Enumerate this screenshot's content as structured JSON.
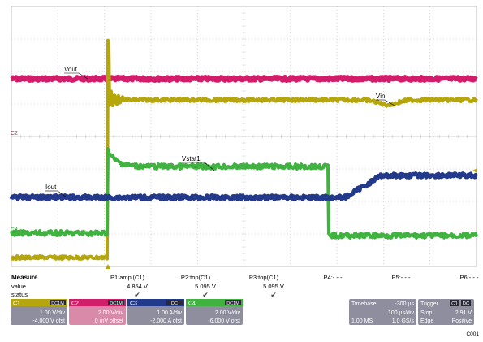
{
  "colors": {
    "ch1": "#b5a60e",
    "ch2": "#d21d6a",
    "ch3": "#233a8c",
    "ch4": "#3fb23f",
    "grid": "#b0b0b0",
    "panel": "#8e8e9e",
    "panel_dark": "#3a3a48",
    "ch2_bg": "#d98aa9"
  },
  "waveform_labels": {
    "vout": "Vout",
    "vin": "Vin",
    "vstat": "Vstat1",
    "iout": "Iout"
  },
  "channel_markers": {
    "c1": "C1",
    "c2": "C2",
    "c3": "C3",
    "c4": "C4"
  },
  "measure": {
    "header": "Measure",
    "row_value_label": "value",
    "row_status_label": "status",
    "params": [
      {
        "name": "P1:ampl(C1)",
        "value": "4.854 V",
        "status": "✔"
      },
      {
        "name": "P2:top(C1)",
        "value": "5.095 V",
        "status": "✔"
      },
      {
        "name": "P3:top(C1)",
        "value": "5.095 V",
        "status": "✔"
      },
      {
        "name": "P4:- - -",
        "value": "",
        "status": ""
      },
      {
        "name": "P5:- - -",
        "value": "",
        "status": ""
      },
      {
        "name": "P6:- - -",
        "value": "",
        "status": ""
      }
    ]
  },
  "channels": [
    {
      "id": "C1",
      "coupling": "DC1M",
      "scale": "1.00 V/div",
      "offset": "-4.000 V ofst"
    },
    {
      "id": "C2",
      "coupling": "DC1M",
      "scale": "2.00 V/div",
      "offset": "0 mV offset"
    },
    {
      "id": "C3",
      "coupling": "DC",
      "scale": "1.00 A/div",
      "offset": "-2.000 A ofst"
    },
    {
      "id": "C4",
      "coupling": "DC1M",
      "scale": "2.00 V/div",
      "offset": "-6.000 V ofst"
    }
  ],
  "timebase": {
    "label": "Timebase",
    "delay": "-300 µs",
    "per_div": "100 µs/div",
    "samples": "1.00 MS",
    "rate": "1.0 GS/s"
  },
  "trigger": {
    "label": "Trigger",
    "source": "C1",
    "coupling": "DC",
    "mode": "Stop",
    "level": "2.91 V",
    "type": "Edge",
    "slope": "Positive"
  },
  "figure_id": "C001"
}
